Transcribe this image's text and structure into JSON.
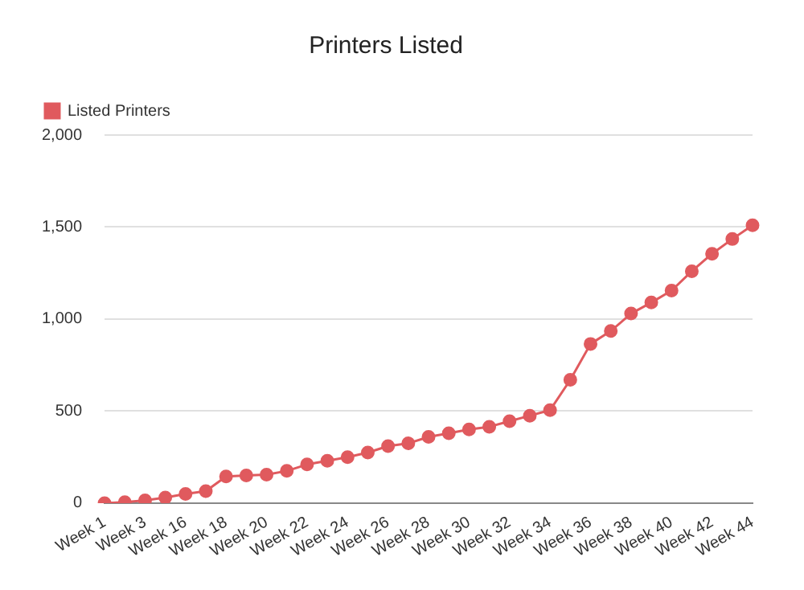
{
  "chart_data": {
    "type": "line",
    "title": "Printers Listed",
    "categories": [
      "Week 1",
      null,
      "Week 3",
      null,
      "Week 16",
      null,
      "Week 18",
      null,
      "Week 20",
      null,
      "Week 22",
      null,
      "Week 24",
      null,
      "Week 26",
      null,
      "Week 28",
      null,
      "Week 30",
      null,
      "Week 32",
      null,
      "Week 34",
      null,
      "Week 36",
      null,
      "Week 38",
      null,
      "Week 40",
      null,
      "Week 42",
      null,
      "Week 44"
    ],
    "series": [
      {
        "name": "Listed Printers",
        "color": "#e05a5e",
        "values": [
          0,
          5,
          15,
          30,
          50,
          65,
          145,
          150,
          155,
          175,
          210,
          230,
          250,
          275,
          310,
          325,
          360,
          380,
          400,
          415,
          445,
          475,
          505,
          670,
          865,
          935,
          1030,
          1090,
          1155,
          1260,
          1355,
          1435,
          1510
        ]
      }
    ],
    "ylim": [
      0,
      2000
    ],
    "yticks": [
      0,
      500,
      {
        "value": 1000,
        "label": "1,000"
      },
      {
        "value": 1500,
        "label": "1,500"
      },
      {
        "value": 2000,
        "label": "2,000"
      }
    ],
    "grid": "y",
    "legend": "top left",
    "marker": "circle",
    "line_style": "solid"
  }
}
